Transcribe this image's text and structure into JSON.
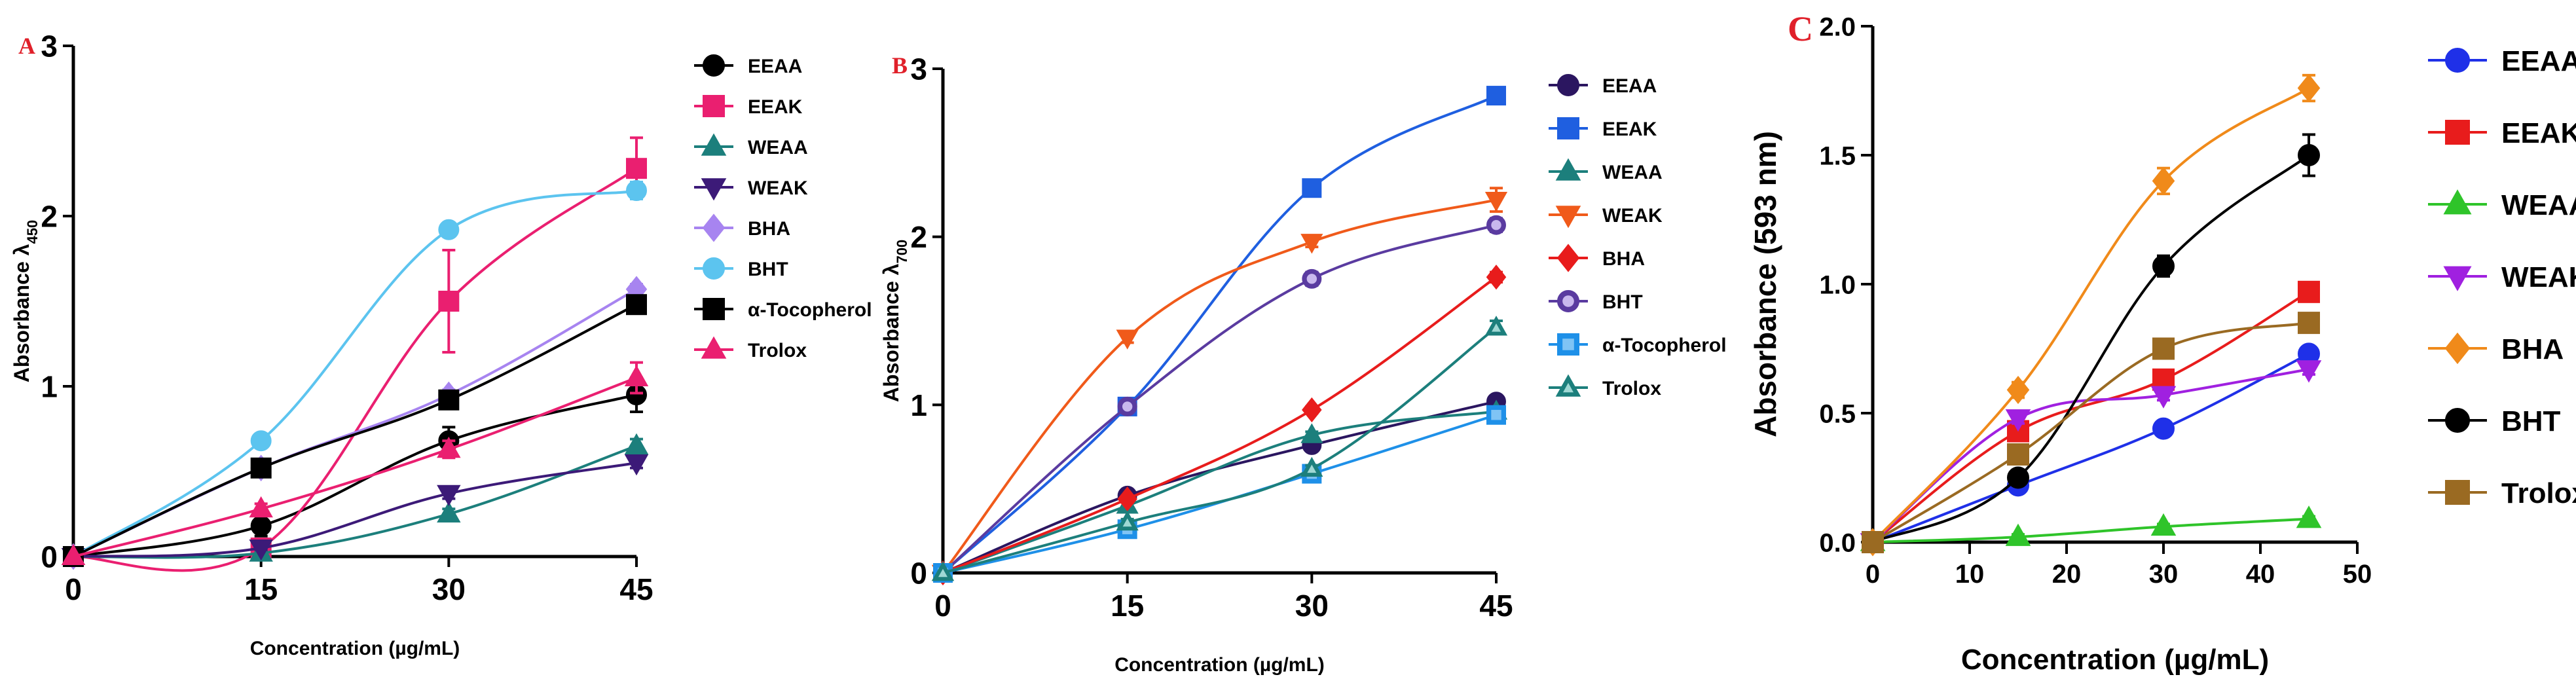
{
  "chart_data": [
    {
      "type": "scatter",
      "panel_label": "A",
      "panel_label_color": "#e0202a",
      "xlabel": "Concentration (µg/mL)",
      "ylabel_main": "Absorbance λ",
      "ylabel_sub": "450",
      "xlim": [
        0,
        45
      ],
      "ylim": [
        0,
        3
      ],
      "xticks": [
        0,
        15,
        30,
        45
      ],
      "yticks": [
        0,
        1,
        2,
        3
      ],
      "tick_labels_x": [
        "0",
        "15",
        "30",
        "45"
      ],
      "tick_labels_y": [
        "0",
        "1",
        "2",
        "3"
      ],
      "legend_position": "right",
      "x": [
        0,
        15,
        30,
        45
      ],
      "series": [
        {
          "name": "EEAA",
          "color": "#000000",
          "marker": "circle",
          "values": [
            0,
            0.18,
            0.68,
            0.95
          ],
          "err": [
            0,
            0.06,
            0.08,
            0.1
          ]
        },
        {
          "name": "EEAK",
          "color": "#ea1f70",
          "marker": "square",
          "values": [
            0,
            0.05,
            1.5,
            2.28
          ],
          "err": [
            0,
            0.03,
            0.3,
            0.18
          ]
        },
        {
          "name": "WEAA",
          "color": "#1c7f7c",
          "marker": "triangle-up",
          "values": [
            0,
            0.02,
            0.25,
            0.65
          ],
          "err": [
            0,
            0.01,
            0.03,
            0.04
          ]
        },
        {
          "name": "WEAK",
          "color": "#3c1a78",
          "marker": "triangle-down",
          "values": [
            0,
            0.05,
            0.37,
            0.55
          ],
          "err": [
            0,
            0.01,
            0.03,
            0.03
          ]
        },
        {
          "name": "BHA",
          "color": "#a784f0",
          "marker": "diamond",
          "values": [
            0,
            0.52,
            0.95,
            1.57
          ],
          "err": [
            0,
            0.03,
            0.03,
            0.03
          ]
        },
        {
          "name": "BHT",
          "color": "#5cc4ef",
          "marker": "circle",
          "values": [
            0,
            0.68,
            1.92,
            2.15
          ],
          "err": [
            0,
            0.03,
            0.04,
            0.05
          ]
        },
        {
          "name": "α-Tocopherol",
          "color": "#000000",
          "marker": "square",
          "values": [
            0,
            0.52,
            0.92,
            1.48
          ],
          "err": [
            0,
            0.03,
            0.04,
            0.04
          ]
        },
        {
          "name": "Trolox",
          "color": "#ea1f70",
          "marker": "triangle-up",
          "values": [
            0,
            0.28,
            0.63,
            1.05
          ],
          "err": [
            0,
            0.03,
            0.05,
            0.09
          ]
        }
      ]
    },
    {
      "type": "scatter",
      "panel_label": "B",
      "panel_label_color": "#e0202a",
      "xlabel": "Concentration (µg/mL)",
      "ylabel_main": "Absorbance λ",
      "ylabel_sub": "700",
      "xlim": [
        0,
        45
      ],
      "ylim": [
        0,
        3
      ],
      "xticks": [
        0,
        15,
        30,
        45
      ],
      "yticks": [
        0,
        1,
        2,
        3
      ],
      "tick_labels_x": [
        "0",
        "15",
        "30",
        "45"
      ],
      "tick_labels_y": [
        "0",
        "1",
        "2",
        "3"
      ],
      "legend_position": "right",
      "x": [
        0,
        15,
        30,
        45
      ],
      "series": [
        {
          "name": "EEAA",
          "color": "#2b1660",
          "marker": "circle",
          "values": [
            0,
            0.46,
            0.76,
            1.02
          ],
          "err": [
            0,
            0.02,
            0.02,
            0.02
          ]
        },
        {
          "name": "EEAK",
          "color": "#1f5fe0",
          "marker": "square",
          "values": [
            0,
            0.99,
            2.29,
            2.84
          ],
          "err": [
            0,
            0.03,
            0.04,
            0.04
          ]
        },
        {
          "name": "WEAA",
          "color": "#1c7f7c",
          "marker": "triangle-up",
          "values": [
            0,
            0.4,
            0.82,
            0.96
          ],
          "err": [
            0,
            0.02,
            0.02,
            0.02
          ]
        },
        {
          "name": "WEAK",
          "color": "#f05a1a",
          "marker": "triangle-down",
          "values": [
            0,
            1.4,
            1.97,
            2.22
          ],
          "err": [
            0,
            0.03,
            0.03,
            0.07
          ]
        },
        {
          "name": "BHA",
          "color": "#e81c1c",
          "marker": "diamond",
          "values": [
            0,
            0.44,
            0.97,
            1.76
          ],
          "err": [
            0,
            0.02,
            0.02,
            0.03
          ]
        },
        {
          "name": "BHT",
          "color": "#5a3ba0",
          "marker": "circle-hollow",
          "values": [
            0,
            0.99,
            1.75,
            2.07
          ],
          "err": [
            0,
            0.03,
            0.04,
            0.04
          ]
        },
        {
          "name": "α-Tocopherol",
          "color": "#1e90e8",
          "marker": "square-hollow",
          "values": [
            0,
            0.26,
            0.59,
            0.94
          ],
          "err": [
            0,
            0.02,
            0.02,
            0.02
          ]
        },
        {
          "name": "Trolox",
          "color": "#1c7f7c",
          "marker": "triangle-hollow",
          "values": [
            0,
            0.3,
            0.62,
            1.46
          ],
          "err": [
            0,
            0.02,
            0.02,
            0.04
          ]
        }
      ]
    },
    {
      "type": "scatter",
      "panel_label": "C",
      "panel_label_color": "#e0202a",
      "xlabel": "Concentration (µg/mL)",
      "ylabel_main": "Absorbance (593 nm)",
      "ylabel_sub": "",
      "xlim": [
        0,
        50
      ],
      "ylim": [
        0,
        2
      ],
      "xticks": [
        0,
        10,
        20,
        30,
        40,
        50
      ],
      "yticks": [
        0,
        0.5,
        1,
        1.5,
        2
      ],
      "tick_labels_x": [
        "0",
        "10",
        "20",
        "30",
        "40",
        "50"
      ],
      "tick_labels_y": [
        "0.0",
        "0.5",
        "1.0",
        "1.5",
        "2.0"
      ],
      "legend_position": "right",
      "x": [
        0,
        15,
        30,
        45
      ],
      "series": [
        {
          "name": "EEAA",
          "color": "#1f30e8",
          "marker": "circle",
          "values": [
            0,
            0.22,
            0.44,
            0.73
          ],
          "err": [
            0,
            0.02,
            0.02,
            0.03
          ]
        },
        {
          "name": "EEAK",
          "color": "#e81c1c",
          "marker": "square",
          "values": [
            0,
            0.43,
            0.63,
            0.97
          ],
          "err": [
            0,
            0.02,
            0.02,
            0.02
          ]
        },
        {
          "name": "WEAA",
          "color": "#2fc42a",
          "marker": "triangle-up",
          "values": [
            0,
            0.02,
            0.06,
            0.09
          ],
          "err": [
            0,
            0.01,
            0.01,
            0.01
          ]
        },
        {
          "name": "WEAK",
          "color": "#a020e0",
          "marker": "triangle-down",
          "values": [
            0,
            0.48,
            0.57,
            0.67
          ],
          "err": [
            0,
            0.02,
            0.02,
            0.02
          ]
        },
        {
          "name": "BHA",
          "color": "#f08a1a",
          "marker": "diamond",
          "values": [
            0,
            0.59,
            1.4,
            1.76
          ],
          "err": [
            0,
            0.03,
            0.05,
            0.05
          ]
        },
        {
          "name": "BHT",
          "color": "#000000",
          "marker": "circle",
          "values": [
            0,
            0.25,
            1.07,
            1.5
          ],
          "err": [
            0,
            0.03,
            0.04,
            0.08
          ]
        },
        {
          "name": "Trolox",
          "color": "#9a6a22",
          "marker": "square",
          "values": [
            0,
            0.34,
            0.75,
            0.85
          ],
          "err": [
            0,
            0.02,
            0.03,
            0.03
          ]
        }
      ]
    }
  ]
}
